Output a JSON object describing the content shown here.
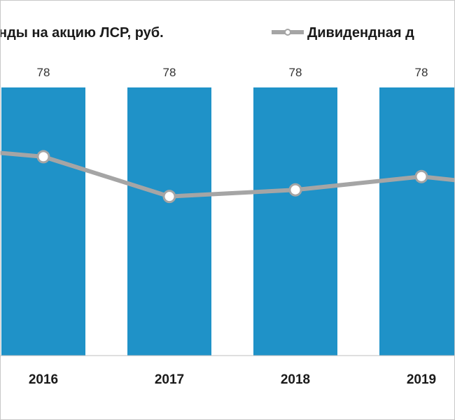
{
  "legend": {
    "bars_label": "нды на акцию ЛСР, руб.",
    "line_label": "Дивидендная д"
  },
  "chart_data": {
    "type": "bar",
    "categories": [
      "2016",
      "2017",
      "2018",
      "2019"
    ],
    "series": [
      {
        "type": "bar",
        "values": [
          78,
          78,
          78,
          78
        ],
        "color": "#1f92c8"
      },
      {
        "type": "line",
        "values": [
          9.0,
          7.2,
          7.5,
          8.1
        ],
        "color": "#a5a5a5"
      }
    ],
    "bar_ylim": [
      0,
      90
    ],
    "line_ylim": [
      0,
      14
    ],
    "line_edges": {
      "left": 9.5,
      "right": 7.5
    },
    "legend_position": "top",
    "grid": false
  }
}
